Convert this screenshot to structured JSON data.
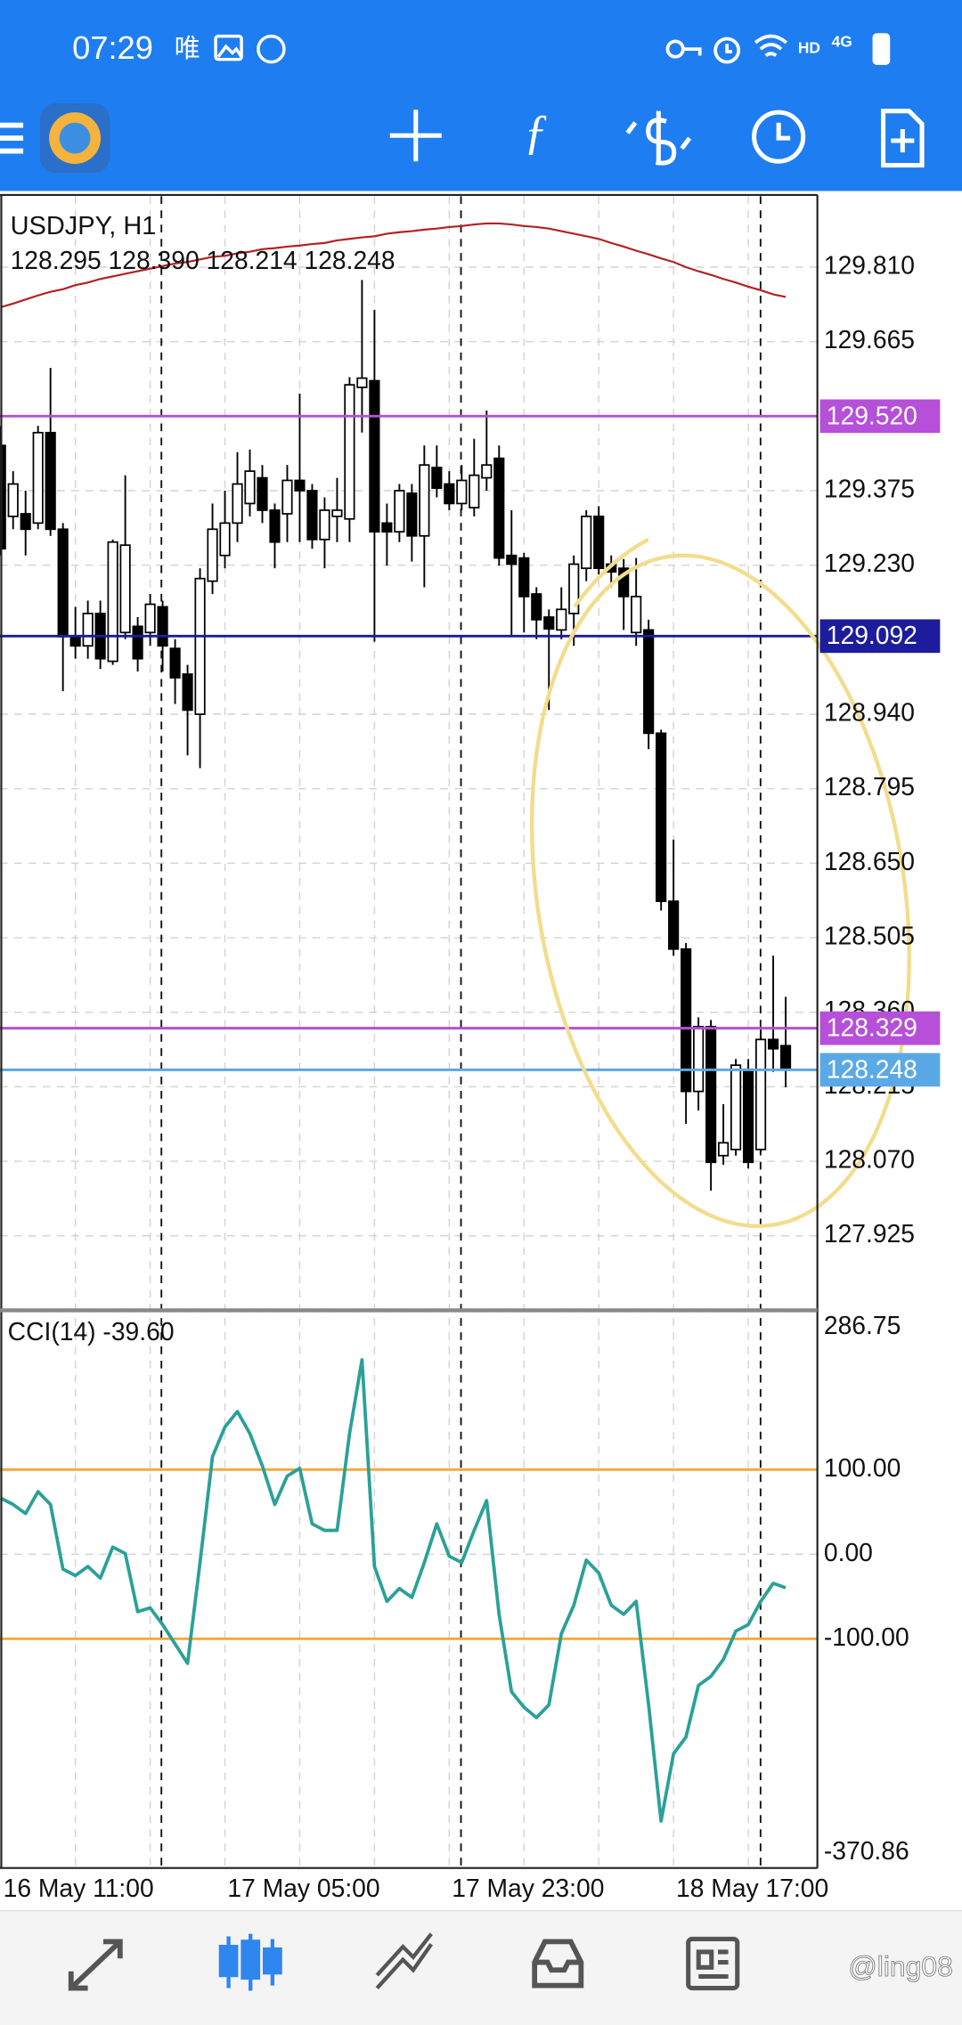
{
  "status_bar": {
    "time": "07:29",
    "app_icon": "唯",
    "network": "HD",
    "signal": "4G"
  },
  "watermark": "@ling08",
  "chart_data": [
    {
      "type": "candlestick",
      "title": "USDJPY, H1",
      "subtitle": "128.295 128.390 128.214 128.248",
      "categories": [
        "16 May 11:00",
        null,
        null,
        null,
        null,
        null,
        null,
        null,
        null,
        null,
        null,
        null,
        null,
        null,
        null,
        null,
        null,
        null,
        "17 May 05:00",
        null,
        null,
        null,
        null,
        null,
        null,
        null,
        null,
        null,
        null,
        null,
        null,
        null,
        null,
        null,
        null,
        null,
        "17 May 23:00",
        null,
        null,
        null,
        null,
        null,
        null,
        null,
        null,
        null,
        null,
        null,
        null,
        null,
        null,
        null,
        null,
        null,
        "18 May 17:00",
        null,
        null,
        null,
        null,
        null,
        null,
        null,
        null,
        null
      ],
      "open": [
        129.463,
        129.325,
        129.33,
        129.312,
        129.488,
        129.3,
        129.091,
        129.073,
        129.136,
        129.043,
        129.099,
        129.111,
        129.099,
        129.149,
        129.068,
        129.018,
        128.94,
        129.199,
        129.249,
        129.312,
        129.35,
        129.4,
        129.337,
        129.33,
        129.395,
        129.375,
        129.28,
        129.325,
        129.32,
        129.576,
        129.589,
        129.312,
        129.295,
        129.37,
        129.287,
        129.42,
        129.388,
        129.35,
        129.342,
        129.4,
        129.438,
        129.249,
        129.244,
        129.174,
        129.129,
        129.104,
        129.136,
        129.224,
        129.325,
        129.232,
        129.224,
        129.099,
        129.104,
        128.903,
        128.576,
        128.483,
        128.206,
        128.332,
        128.081,
        128.093,
        128.249,
        128.093,
        128.307,
        128.295
      ],
      "high": [
        129.501,
        129.413,
        129.375,
        129.501,
        129.614,
        129.312,
        129.149,
        129.161,
        129.161,
        129.28,
        129.405,
        129.129,
        129.174,
        129.161,
        129.086,
        129.036,
        129.224,
        129.35,
        129.375,
        129.45,
        129.455,
        129.425,
        129.35,
        129.425,
        129.564,
        129.388,
        129.362,
        129.4,
        129.596,
        129.785,
        129.727,
        129.35,
        129.388,
        129.388,
        129.463,
        129.463,
        129.413,
        129.425,
        129.476,
        129.531,
        129.463,
        129.337,
        129.254,
        129.187,
        129.144,
        129.187,
        129.249,
        129.337,
        129.345,
        129.249,
        129.242,
        129.244,
        129.124,
        128.91,
        128.696,
        128.495,
        128.35,
        128.345,
        128.181,
        128.269,
        128.269,
        128.332,
        128.47,
        128.39
      ],
      "low": [
        129.249,
        129.3,
        129.249,
        129.3,
        129.287,
        128.985,
        129.048,
        129.048,
        129.028,
        129.036,
        129.086,
        129.023,
        129.073,
        129.023,
        128.96,
        128.86,
        128.835,
        129.174,
        129.224,
        129.275,
        129.325,
        129.312,
        129.224,
        129.275,
        129.275,
        129.262,
        129.224,
        129.275,
        129.275,
        129.488,
        129.081,
        129.229,
        129.275,
        129.237,
        129.187,
        129.362,
        129.337,
        129.337,
        129.325,
        129.375,
        129.229,
        129.094,
        129.099,
        129.086,
        128.948,
        129.086,
        129.073,
        129.199,
        129.212,
        129.187,
        129.104,
        129.073,
        128.872,
        128.558,
        128.47,
        128.143,
        128.169,
        128.013,
        128.063,
        128.081,
        128.056,
        128.088,
        128.244,
        128.214
      ],
      "close": [
        129.262,
        129.388,
        129.3,
        129.488,
        129.3,
        129.091,
        129.073,
        129.136,
        129.048,
        129.275,
        129.269,
        129.048,
        129.154,
        129.073,
        129.011,
        128.948,
        129.204,
        129.3,
        129.312,
        129.388,
        129.413,
        129.337,
        129.275,
        129.395,
        129.375,
        129.28,
        129.337,
        129.337,
        129.581,
        129.594,
        129.295,
        129.295,
        129.375,
        129.287,
        129.425,
        129.38,
        129.35,
        129.395,
        129.405,
        129.425,
        129.244,
        129.232,
        129.169,
        129.124,
        129.106,
        129.144,
        129.232,
        129.325,
        129.224,
        129.217,
        129.169,
        129.169,
        128.903,
        128.576,
        128.483,
        128.206,
        128.332,
        128.068,
        128.106,
        128.257,
        128.068,
        128.307,
        128.289,
        128.248
      ],
      "up_color": "#ffffff",
      "down_color": "#000000",
      "ma": {
        "color": "#b22222",
        "values": [
          129.732,
          129.739,
          129.747,
          129.755,
          129.762,
          129.767,
          129.775,
          129.78,
          129.787,
          129.792,
          129.797,
          129.802,
          129.807,
          129.812,
          129.817,
          129.82,
          129.825,
          129.83,
          129.832,
          129.837,
          129.84,
          129.845,
          129.847,
          129.85,
          129.852,
          129.855,
          129.857,
          129.862,
          129.865,
          129.868,
          129.87,
          129.875,
          129.878,
          129.88,
          129.883,
          129.885,
          129.888,
          129.89,
          129.893,
          129.895,
          129.895,
          129.893,
          129.89,
          129.888,
          129.885,
          129.88,
          129.875,
          129.87,
          129.865,
          129.857,
          129.85,
          129.842,
          129.835,
          129.827,
          129.82,
          129.81,
          129.802,
          129.795,
          129.787,
          129.78,
          129.772,
          129.765,
          129.757,
          129.752
        ]
      },
      "hlines": [
        {
          "value": 129.52,
          "label": "129.520",
          "color": "#b64fd9"
        },
        {
          "value": 129.092,
          "label": "129.092",
          "color": "#1c1c9c"
        },
        {
          "value": 128.329,
          "label": "128.329",
          "color": "#b64fd9"
        },
        {
          "value": 128.248,
          "label": "128.248",
          "color": "#5aa9e6"
        }
      ],
      "ylim": [
        127.785,
        129.948
      ],
      "yticks": [
        {
          "value": 129.81,
          "label": "129.810"
        },
        {
          "value": 129.665,
          "label": "129.665"
        },
        {
          "value": 129.375,
          "label": "129.375"
        },
        {
          "value": 129.23,
          "label": "129.230"
        },
        {
          "value": 128.94,
          "label": "128.940"
        },
        {
          "value": 128.795,
          "label": "128.795"
        },
        {
          "value": 128.65,
          "label": "128.650"
        },
        {
          "value": 128.505,
          "label": "128.505"
        },
        {
          "value": 128.36,
          "label": "128.360"
        },
        {
          "value": 128.215,
          "label": "128.215"
        },
        {
          "value": 128.07,
          "label": "128.070"
        },
        {
          "value": 127.925,
          "label": "127.925"
        }
      ],
      "grid": true
    },
    {
      "type": "line",
      "title": "CCI(14) -39.60",
      "color": "#2aa198",
      "values": [
        66.4,
        58.8,
        48.1,
        74.0,
        58.8,
        -17.6,
        -25.2,
        -14.5,
        -28.2,
        8.4,
        0.8,
        -67.9,
        -63.4,
        -83.2,
        -106.1,
        -129.0,
        -9.9,
        115.3,
        150.4,
        168.7,
        142.7,
        104.6,
        58.8,
        92.4,
        101.5,
        35.9,
        28.2,
        28.2,
        142.7,
        229.8,
        -14.5,
        -55.7,
        -40.5,
        -51.1,
        -9.9,
        35.9,
        -2.3,
        -9.9,
        28.2,
        63.4,
        -71.0,
        -162.6,
        -180.9,
        -193.1,
        -177.9,
        -93.9,
        -60.3,
        -6.9,
        -22.1,
        -60.3,
        -71.0,
        -55.7,
        -177.9,
        -315.3,
        -235.9,
        -216.0,
        -155.0,
        -144.3,
        -124.4,
        -90.8,
        -83.2,
        -55.7,
        -34.4,
        -39.6
      ],
      "levels": [
        100,
        -100
      ],
      "level_color": "#f2a93b",
      "ylim": [
        -370.86,
        286.75
      ],
      "yticks": [
        286.75,
        {
          "value": 100,
          "label": "100.00"
        },
        {
          "value": 0,
          "label": "0.00"
        },
        {
          "value": -100,
          "label": "-100.00"
        },
        -370.86
      ],
      "grid": true
    }
  ]
}
